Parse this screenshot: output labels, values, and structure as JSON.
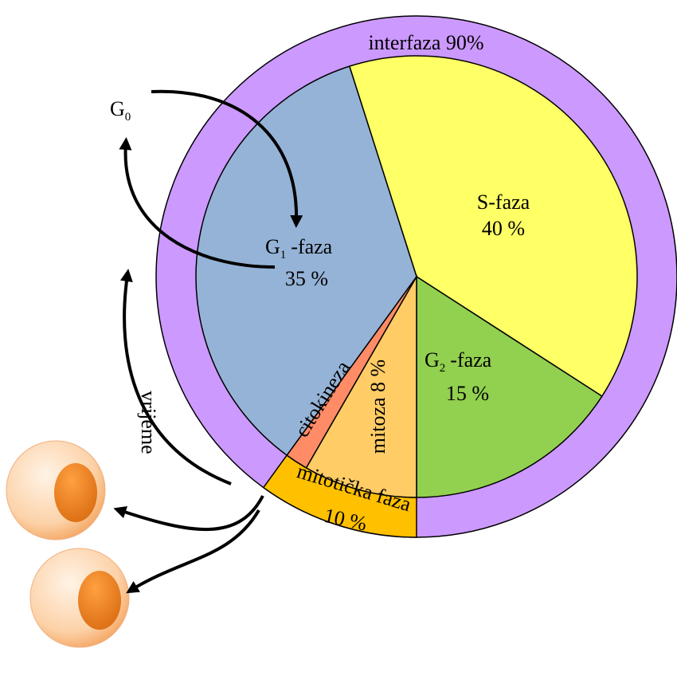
{
  "ring": {
    "interphase": "interfaza 90%",
    "mitotic": "mitotička faza",
    "mitotic_pct": "10 %"
  },
  "g0": {
    "letter": "G",
    "sub": "0"
  },
  "g1": {
    "letter": "G",
    "sub": "1",
    "suffix": "-faza",
    "pct": "35 %"
  },
  "s": {
    "label": "S-faza",
    "pct": "40 %"
  },
  "g2": {
    "letter": "G",
    "sub": "2",
    "suffix": "-faza",
    "pct": "15 %"
  },
  "mitosis": "mitoza 8 %",
  "cytokinesis": "citokineza",
  "time": "vrijeme"
}
